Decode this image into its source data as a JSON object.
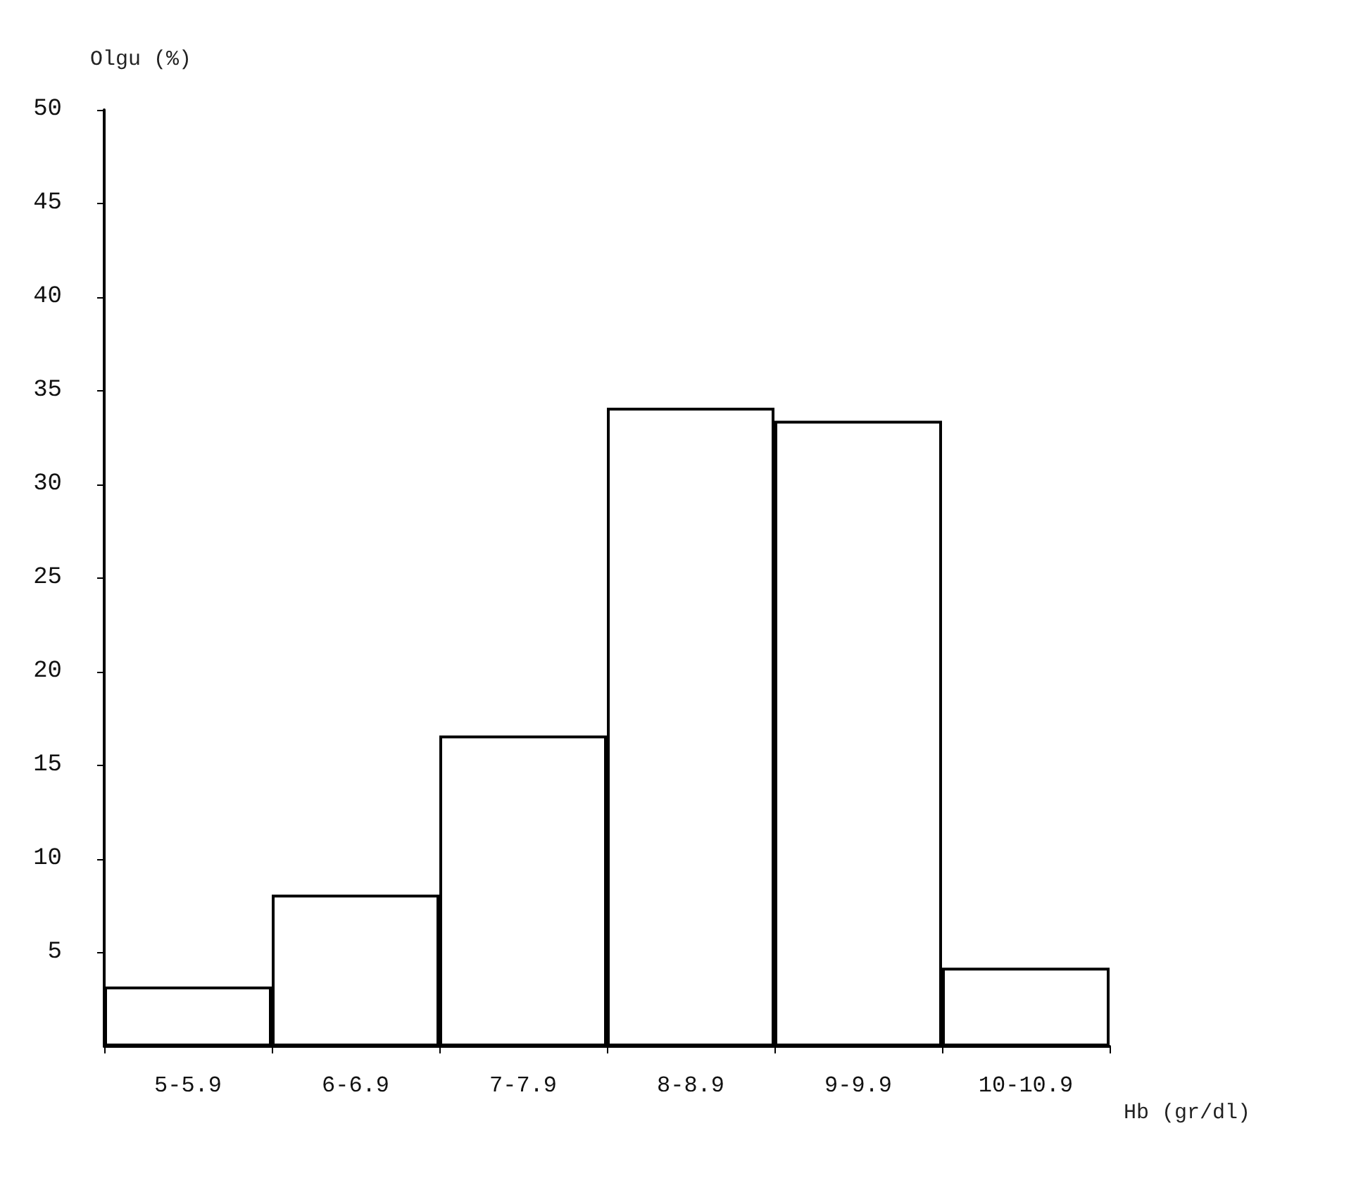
{
  "chart_data": {
    "type": "bar",
    "ylabel": "Olgu (%)",
    "xlabel": "Hb (gr/dl)",
    "categories": [
      "5-5.9",
      "6-6.9",
      "7-7.9",
      "8-8.9",
      "9-9.9",
      "10-10.9"
    ],
    "values": [
      3.2,
      8.1,
      16.6,
      34.1,
      33.4,
      4.2
    ],
    "color": "#ffffff",
    "ylim": [
      0,
      50
    ],
    "yticks": [
      5,
      10,
      15,
      20,
      25,
      30,
      35,
      40,
      45,
      50
    ],
    "grid": false
  }
}
